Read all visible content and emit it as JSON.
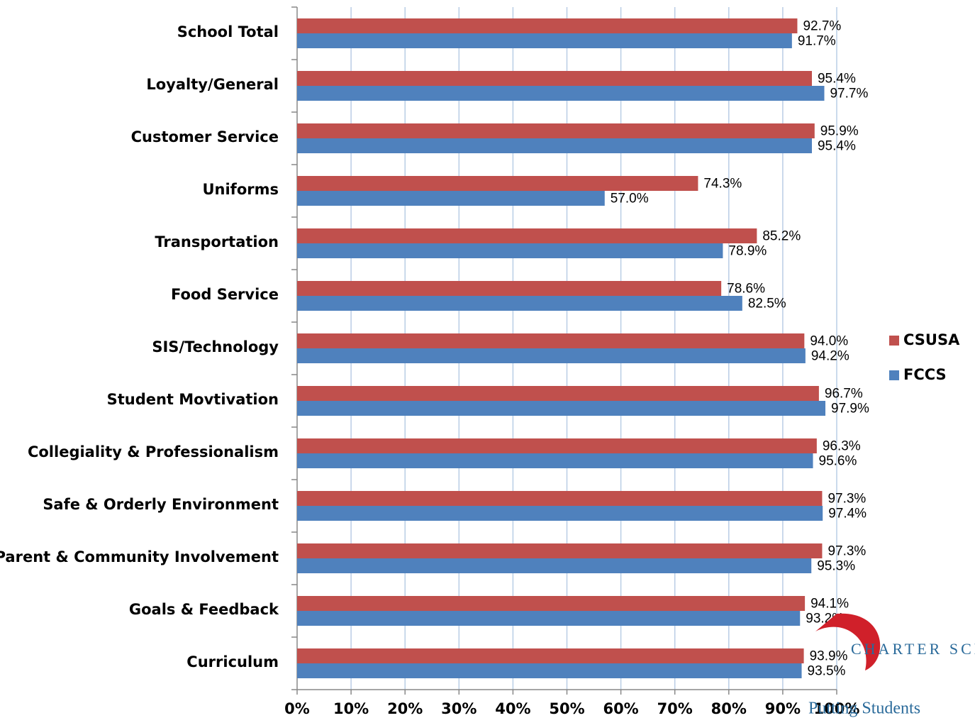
{
  "chart_data": {
    "type": "hbar",
    "categories": [
      "School Total",
      "Loyalty/General",
      "Customer Service",
      "Uniforms",
      "Transportation",
      "Food Service",
      "SIS/Technology",
      "Student Movtivation",
      "Collegiality & Professionalism",
      "Safe & Orderly Environment",
      "Parent & Community Involvement",
      "Goals & Feedback",
      "Curriculum"
    ],
    "series": [
      {
        "name": "CSUSA",
        "color": "#c0504d",
        "values": [
          92.7,
          95.4,
          95.9,
          74.3,
          85.2,
          78.6,
          94.0,
          96.7,
          96.3,
          97.3,
          97.3,
          94.1,
          93.9
        ],
        "value_labels": [
          "92.7%",
          "95.4%",
          "95.9%",
          "74.3%",
          "85.2%",
          "78.6%",
          "94.0%",
          "96.7%",
          "96.3%",
          "97.3%",
          "97.3%",
          "94.1%",
          "93.9%"
        ]
      },
      {
        "name": "FCCS",
        "color": "#4f81bd",
        "values": [
          91.7,
          97.7,
          95.4,
          57.0,
          78.9,
          82.5,
          94.2,
          97.9,
          95.6,
          97.4,
          95.3,
          93.2,
          93.5
        ],
        "value_labels": [
          "91.7%",
          "97.7%",
          "95.4%",
          "57.0%",
          "78.9%",
          "82.5%",
          "94.2%",
          "97.9%",
          "95.6%",
          "97.4%",
          "95.3%",
          "93.2%",
          "93.5%"
        ]
      }
    ],
    "xlim": [
      0,
      100
    ],
    "xticks": [
      {
        "value": 0,
        "label": "0%"
      },
      {
        "value": 10,
        "label": "10%"
      },
      {
        "value": 20,
        "label": "20%"
      },
      {
        "value": 30,
        "label": "30%"
      },
      {
        "value": 40,
        "label": "40%"
      },
      {
        "value": 50,
        "label": "50%"
      },
      {
        "value": 60,
        "label": "60%"
      },
      {
        "value": 70,
        "label": "70%"
      },
      {
        "value": 80,
        "label": "80%"
      },
      {
        "value": 90,
        "label": "90%"
      },
      {
        "value": 100,
        "label": "100%"
      }
    ],
    "grid": true,
    "legend": "right",
    "annotations": [
      "CHARTER SCHOOLS",
      "Putting Students"
    ]
  }
}
